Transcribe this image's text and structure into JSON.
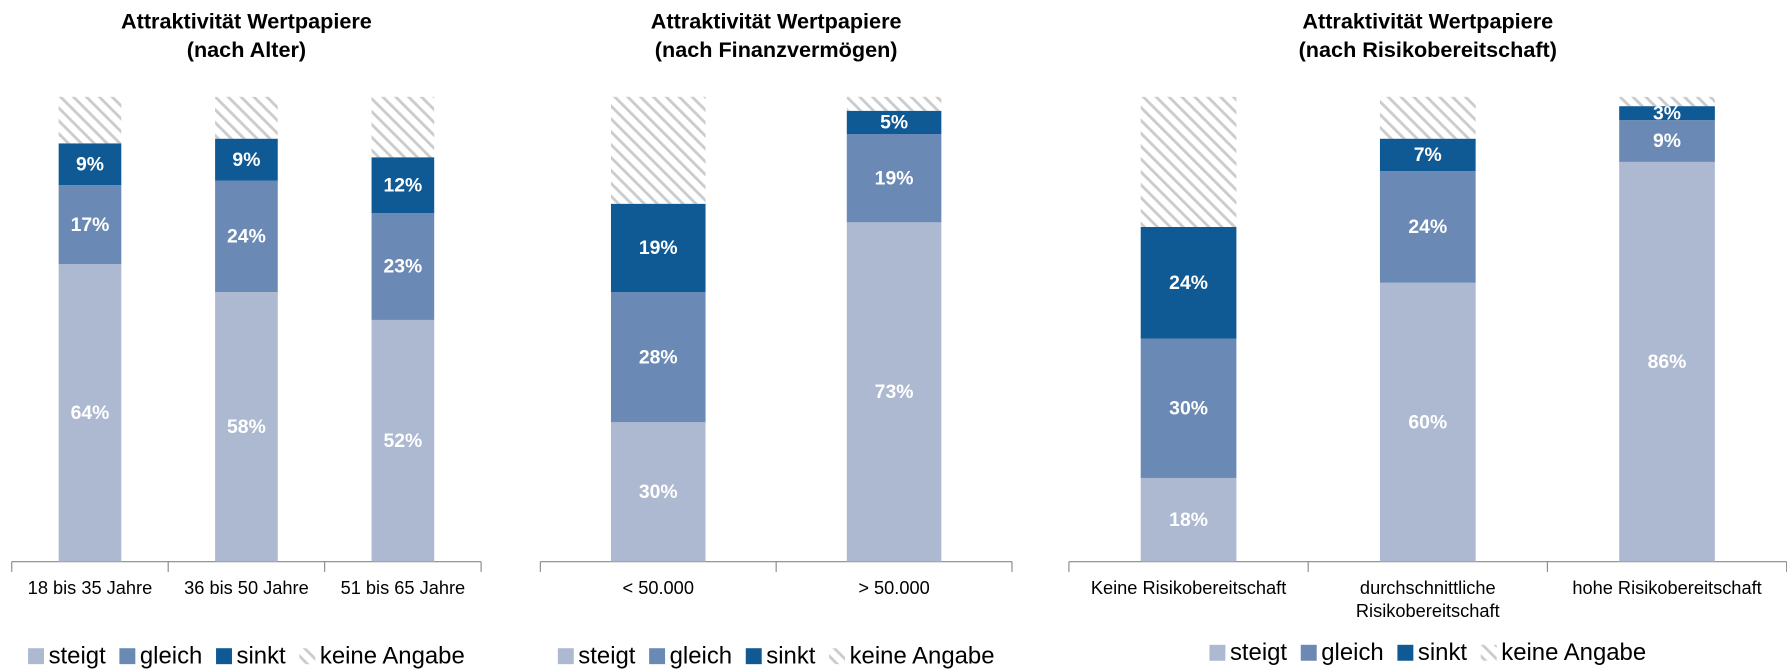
{
  "chart_data": [
    {
      "type": "stacked_bar",
      "title": "Attraktivität Wertpapiere",
      "subtitle": "(nach Alter)",
      "categories": [
        "18 bis 35 Jahre",
        "36 bis 50 Jahre",
        "51 bis 65 Jahre"
      ],
      "ylim": [
        0,
        100
      ],
      "series": [
        {
          "name": "steigt",
          "color": "#adb9d0",
          "values": [
            64,
            58,
            52
          ],
          "value_labels": [
            "64%",
            "58%",
            "52%"
          ]
        },
        {
          "name": "gleich",
          "color": "#6a8ab5",
          "values": [
            17,
            24,
            23
          ],
          "value_labels": [
            "17%",
            "24%",
            "23%"
          ]
        },
        {
          "name": "sinkt",
          "color": "#0f5a94",
          "values": [
            9,
            9,
            12
          ],
          "value_labels": [
            "9%",
            "9%",
            "12%"
          ]
        },
        {
          "name": "keine Angabe",
          "color": "#cccccc",
          "pattern": "hatch",
          "values": [
            10,
            9,
            13
          ]
        }
      ]
    },
    {
      "type": "stacked_bar",
      "title": "Attraktivität Wertpapiere",
      "subtitle": "(nach Finanzvermögen)",
      "categories": [
        "< 50.000",
        "> 50.000"
      ],
      "ylim": [
        0,
        100
      ],
      "series": [
        {
          "name": "steigt",
          "color": "#adb9d0",
          "values": [
            30,
            73
          ],
          "value_labels": [
            "30%",
            "73%"
          ]
        },
        {
          "name": "gleich",
          "color": "#6a8ab5",
          "values": [
            28,
            19
          ],
          "value_labels": [
            "28%",
            "19%"
          ]
        },
        {
          "name": "sinkt",
          "color": "#0f5a94",
          "values": [
            19,
            5
          ],
          "value_labels": [
            "19%",
            "5%"
          ]
        },
        {
          "name": "keine Angabe",
          "color": "#cccccc",
          "pattern": "hatch",
          "values": [
            23,
            3
          ]
        }
      ]
    },
    {
      "type": "stacked_bar",
      "title": "Attraktivität Wertpapiere",
      "subtitle": "(nach Risikobereitschaft)",
      "categories": [
        "Keine Risikobereitschaft",
        "durchschnittliche Risikobereitschaft",
        "hohe Risikobereitschaft"
      ],
      "ylim": [
        0,
        100
      ],
      "series": [
        {
          "name": "steigt",
          "color": "#adb9d0",
          "values": [
            18,
            60,
            86
          ],
          "value_labels": [
            "18%",
            "60%",
            "86%"
          ]
        },
        {
          "name": "gleich",
          "color": "#6a8ab5",
          "values": [
            30,
            24,
            9
          ],
          "value_labels": [
            "30%",
            "24%",
            "9%"
          ]
        },
        {
          "name": "sinkt",
          "color": "#0f5a94",
          "values": [
            24,
            7,
            3
          ],
          "value_labels": [
            "24%",
            "7%",
            "3%"
          ]
        },
        {
          "name": "keine Angabe",
          "color": "#cccccc",
          "pattern": "hatch",
          "values": [
            28,
            9,
            2
          ]
        }
      ]
    }
  ]
}
